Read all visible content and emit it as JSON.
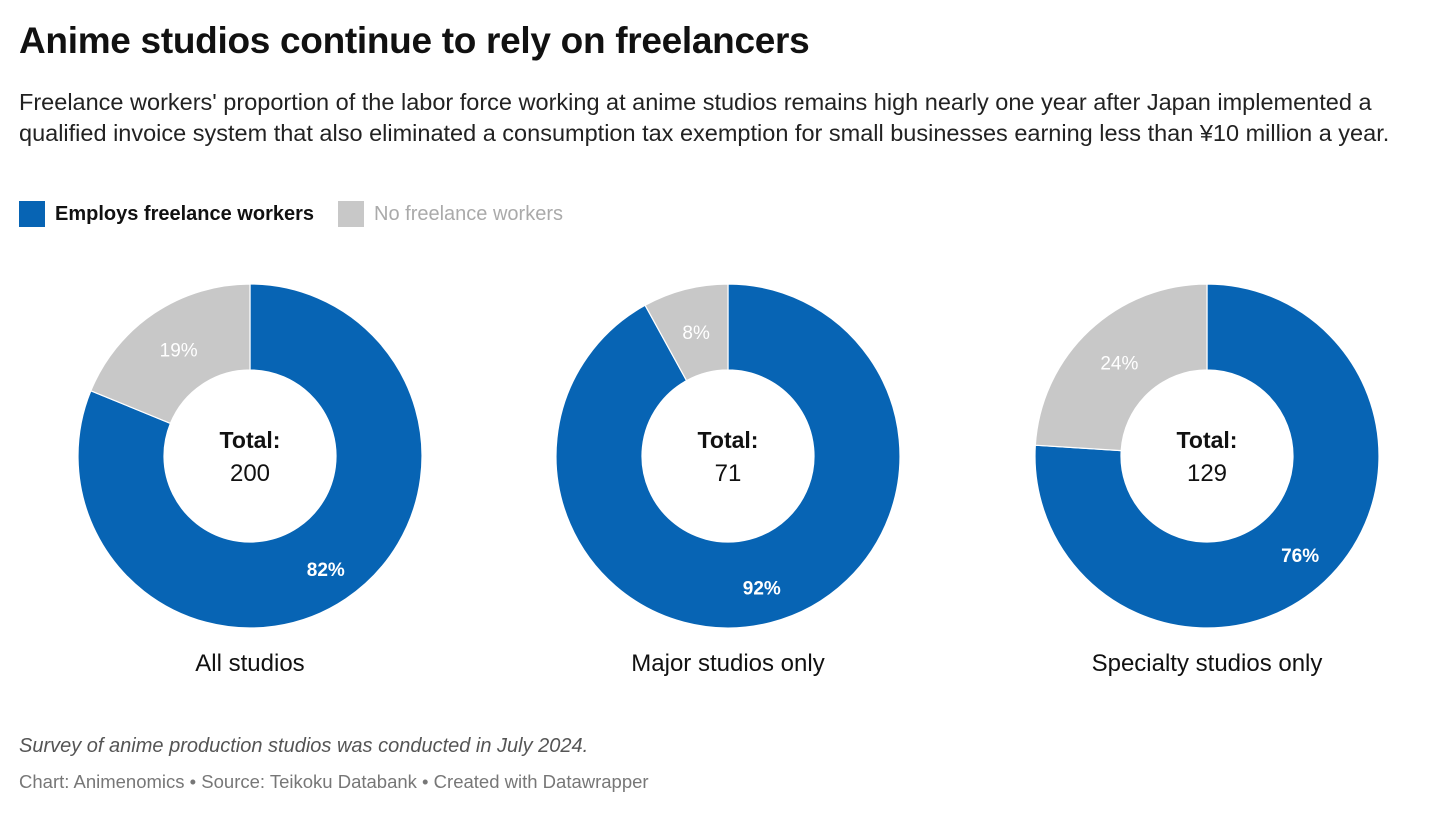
{
  "title": "Anime studios continue to rely on freelancers",
  "subtitle": "Freelance workers' proportion of the labor force working at anime studios remains high nearly one year after Japan implemented a qualified invoice system that also eliminated a consumption tax exemption for small businesses earning less than ¥10 million a year.",
  "legend": [
    {
      "label": "Employs freelance workers",
      "color": "#0764b4",
      "active": true
    },
    {
      "label": "No freelance workers",
      "color": "#c8c8c8",
      "active": false
    }
  ],
  "chart_data": [
    {
      "type": "pie",
      "title": "All studios",
      "center_label": "Total:",
      "center_value": "200",
      "slices": [
        {
          "name": "Employs freelance workers",
          "value": 82,
          "label": "82%",
          "color": "#0764b4"
        },
        {
          "name": "No freelance workers",
          "value": 19,
          "label": "19%",
          "color": "#c8c8c8"
        }
      ]
    },
    {
      "type": "pie",
      "title": "Major studios only",
      "center_label": "Total:",
      "center_value": "71",
      "slices": [
        {
          "name": "Employs freelance workers",
          "value": 92,
          "label": "92%",
          "color": "#0764b4"
        },
        {
          "name": "No freelance workers",
          "value": 8,
          "label": "8%",
          "color": "#c8c8c8"
        }
      ]
    },
    {
      "type": "pie",
      "title": "Specialty studios only",
      "center_label": "Total:",
      "center_value": "129",
      "slices": [
        {
          "name": "Employs freelance workers",
          "value": 76,
          "label": "76%",
          "color": "#0764b4"
        },
        {
          "name": "No freelance workers",
          "value": 24,
          "label": "24%",
          "color": "#c8c8c8"
        }
      ]
    }
  ],
  "notes": "Survey of anime production studios was conducted in July 2024.",
  "footer": "Chart: Animenomics • Source: Teikoku Databank • Created with Datawrapper"
}
